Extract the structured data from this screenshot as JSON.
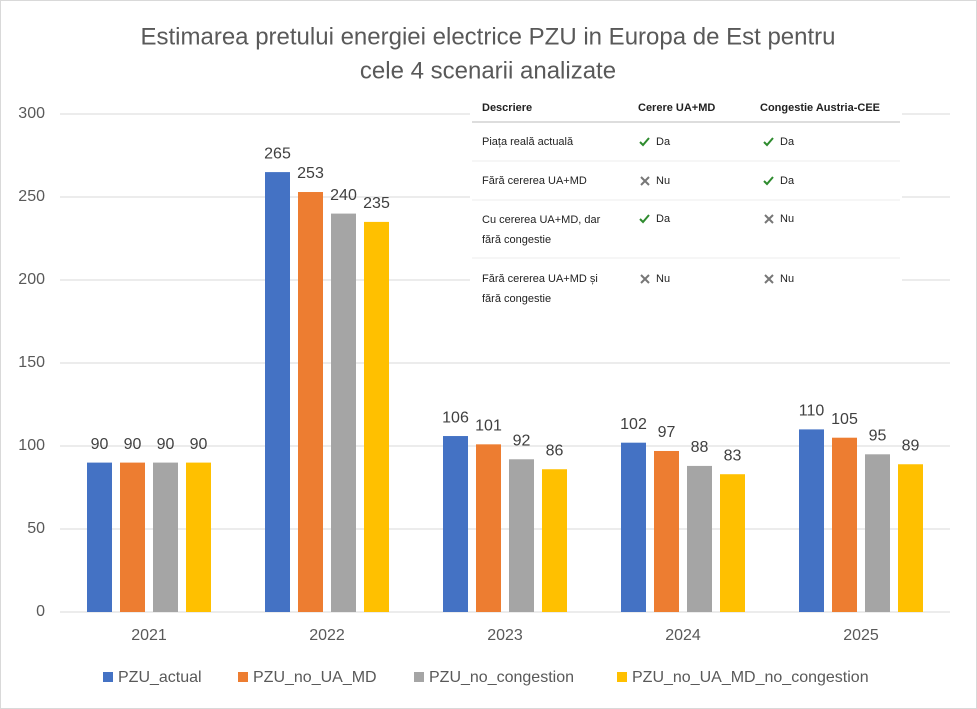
{
  "chart_data": {
    "type": "bar",
    "title": [
      "Estimarea pretului energiei electrice PZU in Europa de Est pentru",
      "cele 4 scenarii analizate"
    ],
    "categories": [
      "2021",
      "2022",
      "2023",
      "2024",
      "2025"
    ],
    "series": [
      {
        "name": "PZU_actual",
        "color": "#4472c4",
        "values": [
          90,
          265,
          106,
          102,
          110
        ]
      },
      {
        "name": "PZU_no_UA_MD",
        "color": "#ed7d31",
        "values": [
          90,
          253,
          101,
          97,
          105
        ]
      },
      {
        "name": "PZU_no_congestion",
        "color": "#a5a5a5",
        "values": [
          90,
          240,
          92,
          88,
          95
        ]
      },
      {
        "name": "PZU_no_UA_MD_no_congestion",
        "color": "#ffc000",
        "values": [
          90,
          235,
          86,
          83,
          89
        ]
      }
    ],
    "ylim": [
      0,
      300
    ],
    "yticks": [
      0,
      50,
      100,
      150,
      200,
      250,
      300
    ],
    "grid": true,
    "legend": "bottom"
  },
  "table": {
    "header": [
      "Descriere",
      "Cerere UA+MD",
      "Congestie Austria-CEE"
    ],
    "rows": [
      [
        [
          "Piața reală actuală"
        ],
        "Da",
        "Da"
      ],
      [
        [
          "Fără cererea UA+MD"
        ],
        "Nu",
        "Da"
      ],
      [
        [
          "Cu cererea UA+MD, dar",
          "fără congestie"
        ],
        "Da",
        "Nu"
      ],
      [
        [
          "Fără cererea UA+MD și",
          "fără congestie"
        ],
        "Nu",
        "Nu"
      ]
    ]
  }
}
